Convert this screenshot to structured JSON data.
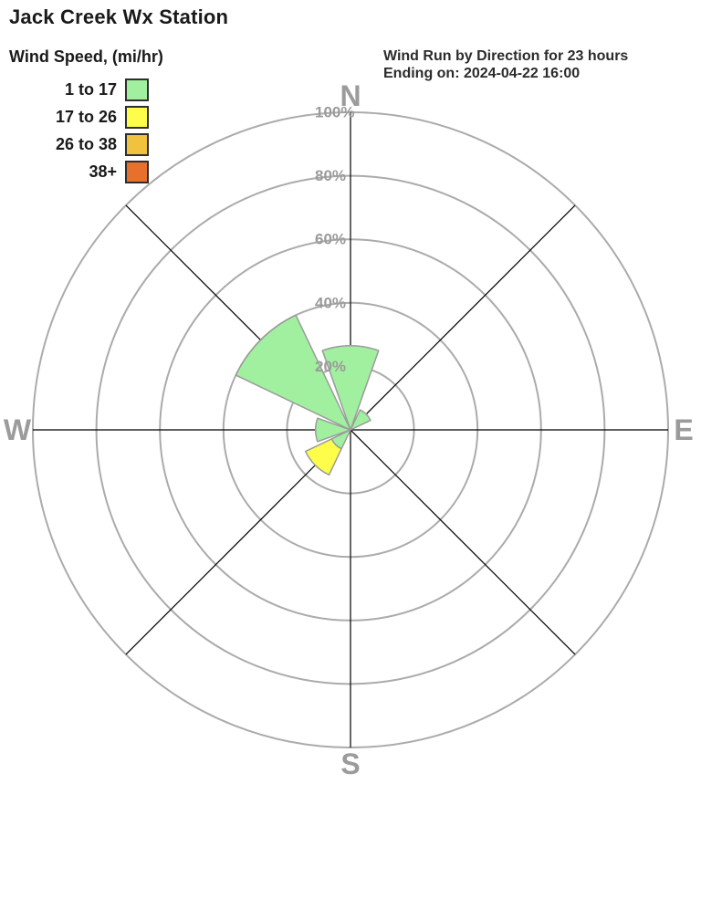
{
  "header": {
    "title": "Jack Creek Wx Station",
    "subtitle_line1": "Wind Run by Direction for 23 hours",
    "subtitle_line2": "Ending on: 2024-04-22 16:00"
  },
  "legend": {
    "title": "Wind Speed, (mi/hr)",
    "items": [
      {
        "label": "1 to 17",
        "color": "#a0f0a0"
      },
      {
        "label": "17 to 26",
        "color": "#fdfd4a"
      },
      {
        "label": "26 to 38",
        "color": "#f0c23e"
      },
      {
        "label": "38+",
        "color": "#e8702d"
      }
    ]
  },
  "chart_data": {
    "type": "windrose-polar-bar",
    "title": "Wind Run by Direction for 23 hours Ending on: 2024-04-22 16:00",
    "units": "percent of wind run",
    "ring_percents": [
      20,
      40,
      60,
      80,
      100
    ],
    "ring_labels": [
      "20%",
      "40%",
      "60%",
      "80%",
      "100%"
    ],
    "compass_labels": {
      "north": "N",
      "east": "E",
      "south": "S",
      "west": "W"
    },
    "petal_width_deg": 39,
    "speed_bins": [
      "1 to 17",
      "17 to 26",
      "26 to 38",
      "38+"
    ],
    "petals": [
      {
        "direction": "N",
        "angle_deg": 0,
        "segments": [
          {
            "bin": "1 to 17",
            "from_pct": 0,
            "to_pct": 26.5
          }
        ]
      },
      {
        "direction": "NE",
        "angle_deg": 45,
        "segments": [
          {
            "bin": "1 to 17",
            "from_pct": 0,
            "to_pct": 7
          }
        ]
      },
      {
        "direction": "E",
        "angle_deg": 90,
        "segments": []
      },
      {
        "direction": "SE",
        "angle_deg": 135,
        "segments": []
      },
      {
        "direction": "S",
        "angle_deg": 180,
        "segments": []
      },
      {
        "direction": "SW",
        "angle_deg": 225,
        "segments": [
          {
            "bin": "1 to 17",
            "from_pct": 0,
            "to_pct": 6.6
          },
          {
            "bin": "17 to 26",
            "from_pct": 6.6,
            "to_pct": 15.7
          }
        ]
      },
      {
        "direction": "W",
        "angle_deg": 270,
        "segments": [
          {
            "bin": "1 to 17",
            "from_pct": 0,
            "to_pct": 11
          }
        ]
      },
      {
        "direction": "NW",
        "angle_deg": 315,
        "segments": [
          {
            "bin": "1 to 17",
            "from_pct": 0,
            "to_pct": 40
          }
        ]
      }
    ],
    "colors": {
      "grid": "#ababab",
      "axis": "#000000",
      "label": "#9b9b9b",
      "petal_border": "#9b9b9b"
    }
  }
}
